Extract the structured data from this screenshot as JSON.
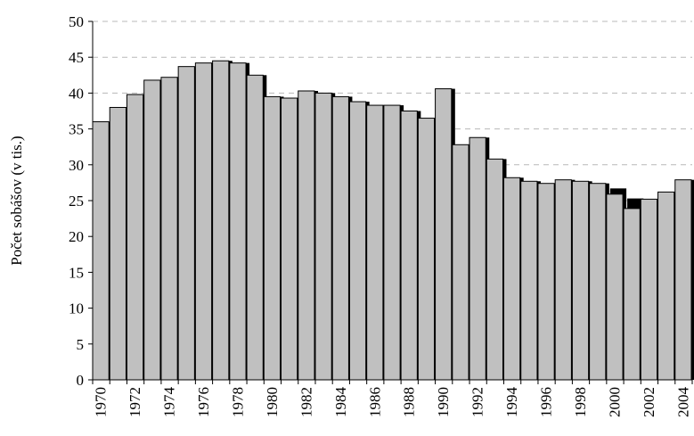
{
  "chart_data": {
    "type": "bar",
    "title": "",
    "xlabel": "",
    "ylabel": "Počet sobášov (v tis.)",
    "ylim": [
      0,
      50
    ],
    "yticks": [
      0,
      5,
      10,
      15,
      20,
      25,
      30,
      35,
      40,
      45,
      50
    ],
    "grid": "horizontal dashed",
    "bar_color": "#c0c0c0",
    "shadow_color": "#000000",
    "categories": [
      "1970",
      "1971",
      "1972",
      "1973",
      "1974",
      "1975",
      "1976",
      "1977",
      "1978",
      "1979",
      "1980",
      "1981",
      "1982",
      "1983",
      "1984",
      "1985",
      "1986",
      "1987",
      "1988",
      "1989",
      "1990",
      "1991",
      "1992",
      "1993",
      "1994",
      "1995",
      "1996",
      "1997",
      "1998",
      "1999",
      "2000",
      "2001",
      "2002",
      "2003",
      "2004"
    ],
    "xtick_labels": [
      "1970",
      "1972",
      "1974",
      "1976",
      "1978",
      "1980",
      "1982",
      "1984",
      "1986",
      "1988",
      "1990",
      "1992",
      "1994",
      "1996",
      "1998",
      "2000",
      "2002",
      "2004"
    ],
    "values": [
      36.0,
      38.0,
      39.8,
      41.8,
      42.2,
      43.7,
      44.2,
      44.5,
      44.2,
      42.5,
      39.5,
      39.3,
      40.3,
      40.0,
      39.5,
      38.8,
      38.3,
      38.3,
      37.5,
      36.5,
      40.6,
      32.8,
      33.8,
      30.8,
      28.2,
      27.7,
      27.4,
      27.9,
      27.7,
      27.4,
      25.9,
      23.9,
      25.2,
      26.2,
      27.9
    ],
    "shadow_values": [
      36.0,
      38.0,
      39.8,
      41.8,
      42.2,
      43.7,
      44.2,
      44.5,
      43.8,
      42.0,
      39.5,
      39.3,
      40.3,
      40.0,
      39.5,
      38.8,
      38.3,
      38.3,
      37.0,
      36.5,
      40.0,
      32.8,
      33.2,
      30.2,
      28.2,
      27.7,
      27.4,
      27.9,
      27.7,
      27.4,
      26.7,
      25.3,
      25.2,
      26.2,
      27.9
    ]
  }
}
